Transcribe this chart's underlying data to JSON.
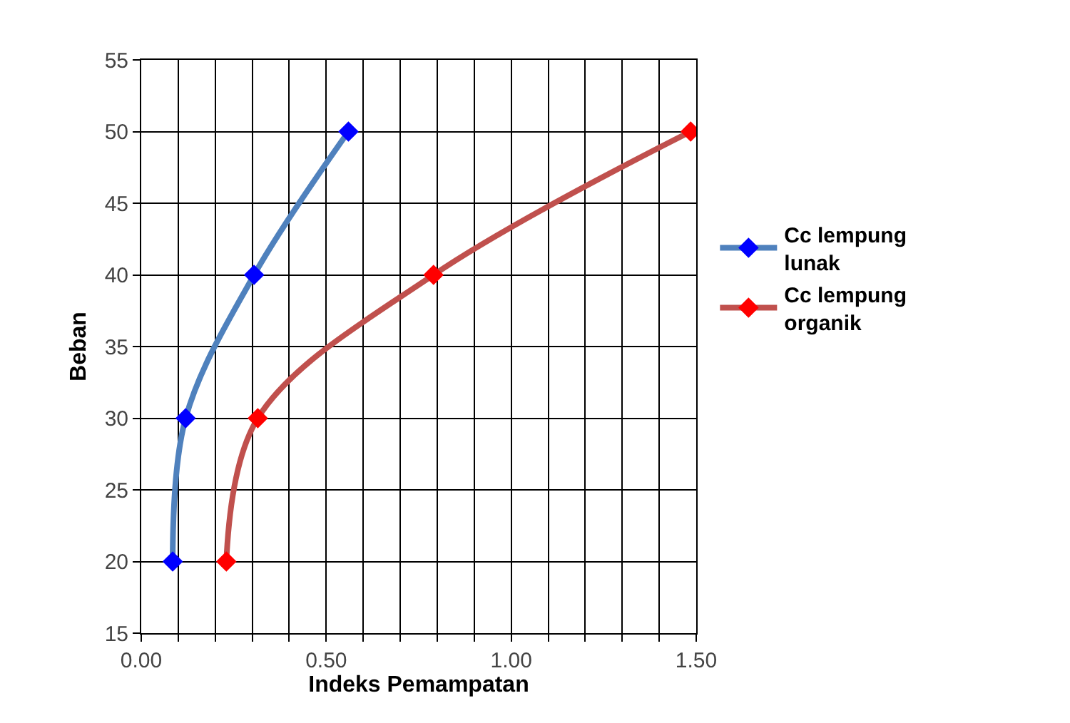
{
  "chart_data": {
    "type": "line",
    "xlabel": "Indeks Pemampatan",
    "ylabel": "Beban",
    "xlim": [
      0,
      1.5
    ],
    "ylim": [
      15,
      55
    ],
    "xticks": [
      {
        "value": 0,
        "label": "0.00"
      },
      {
        "value": 0.1,
        "label": null
      },
      {
        "value": 0.2,
        "label": null
      },
      {
        "value": 0.3,
        "label": null
      },
      {
        "value": 0.4,
        "label": null
      },
      {
        "value": 0.5,
        "label": "0.50"
      },
      {
        "value": 0.6,
        "label": null
      },
      {
        "value": 0.7,
        "label": null
      },
      {
        "value": 0.8,
        "label": null
      },
      {
        "value": 0.9,
        "label": null
      },
      {
        "value": 1.0,
        "label": "1.00"
      },
      {
        "value": 1.1,
        "label": null
      },
      {
        "value": 1.2,
        "label": null
      },
      {
        "value": 1.3,
        "label": null
      },
      {
        "value": 1.4,
        "label": null
      },
      {
        "value": 1.5,
        "label": "1.50"
      }
    ],
    "yticks": [
      15,
      20,
      25,
      30,
      35,
      40,
      45,
      50,
      55
    ],
    "grid": true,
    "legend": "right",
    "marker": "diamond",
    "series": [
      {
        "name": "Cc lempung lunak",
        "color": "#4f81bd",
        "colors": [
          "#0000ff",
          "#0000ff",
          "#0000ff",
          "#0000ff"
        ],
        "x": [
          0.085,
          0.12,
          0.305,
          0.56
        ],
        "values": [
          20,
          30,
          40,
          50
        ]
      },
      {
        "name": "Cc lempung organik",
        "color": "#c0504d",
        "colors": [
          "#ff0000",
          "#ff0000",
          "#ff0000",
          "#ff0000"
        ],
        "x": [
          0.23,
          0.315,
          0.79,
          1.485
        ],
        "values": [
          20,
          30,
          40,
          50
        ]
      }
    ]
  }
}
